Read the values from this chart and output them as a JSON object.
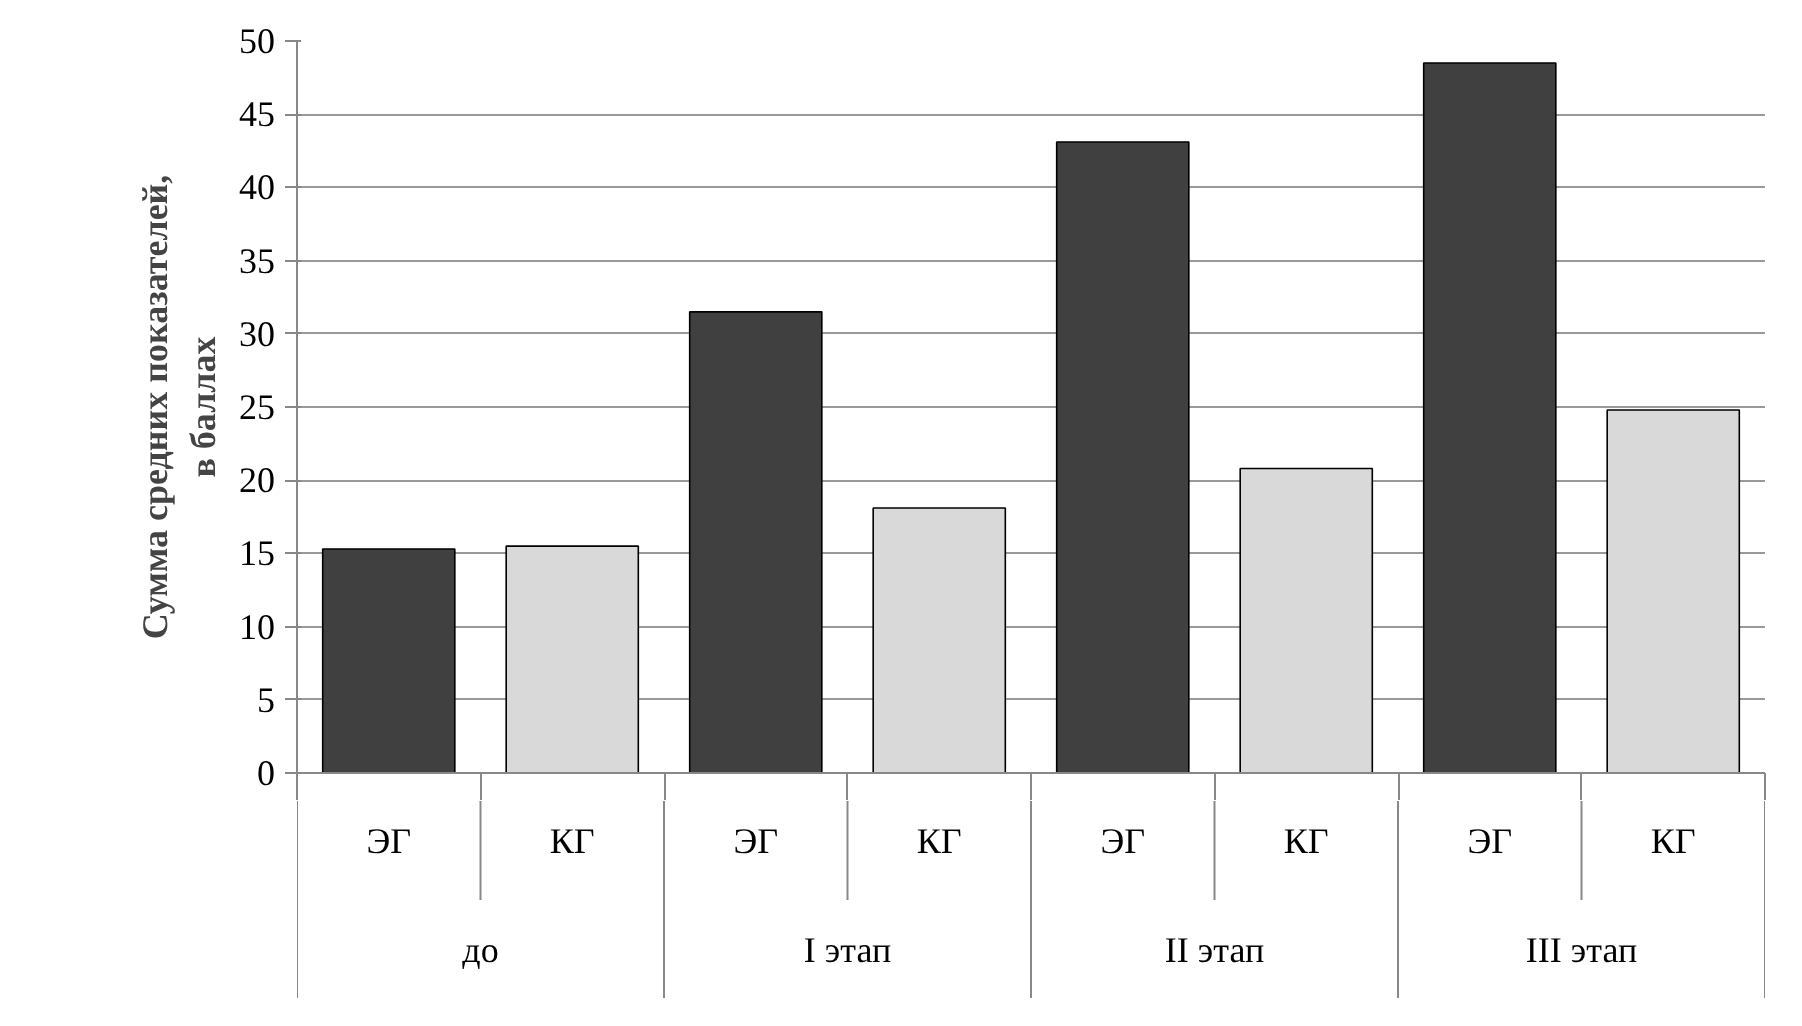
{
  "chart_data": {
    "type": "bar",
    "ylabel": "Сумма средних показателей,\nв баллах",
    "categories": [
      "до",
      "I этап",
      "II этап",
      "III этап"
    ],
    "series": [
      {
        "name": "ЭГ",
        "color": "#404040",
        "values": [
          15.3,
          31.5,
          43.1,
          48.5
        ]
      },
      {
        "name": "КГ",
        "color": "#d9d9d9",
        "values": [
          15.5,
          18.1,
          20.8,
          24.8
        ]
      }
    ],
    "ylim": [
      0,
      50
    ],
    "yticks": [
      0,
      5,
      10,
      15,
      20,
      25,
      30,
      35,
      40,
      45,
      50
    ],
    "grid": "y"
  }
}
